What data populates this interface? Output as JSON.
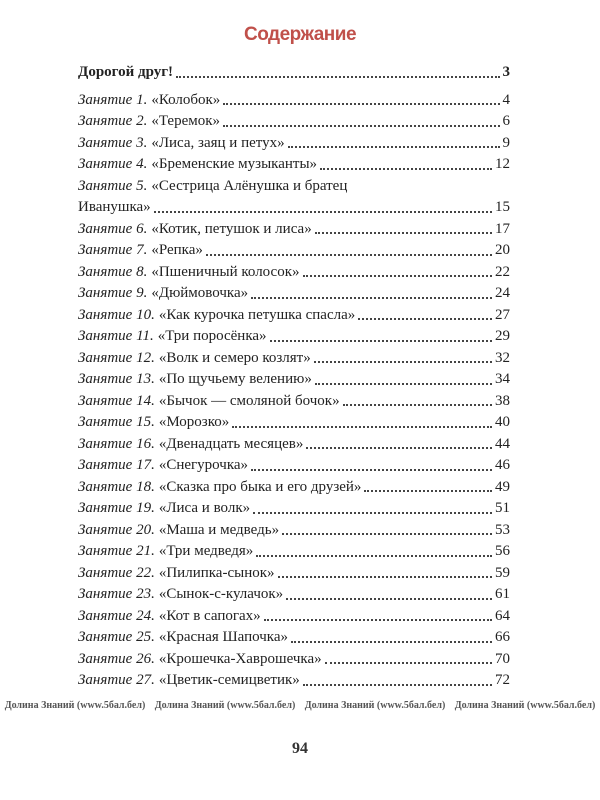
{
  "title": "Содержание",
  "intro": {
    "text": "Дорогой друг!",
    "page": "3"
  },
  "lesson_prefix": "Занятие",
  "entries": [
    {
      "label": "Занятие 1.",
      "title": "«Колобок»",
      "page": "4"
    },
    {
      "label": "Занятие 2.",
      "title": "«Теремок»",
      "page": "6"
    },
    {
      "label": "Занятие 3.",
      "title": "«Лиса, заяц и петух»",
      "page": "9"
    },
    {
      "label": "Занятие 4.",
      "title": "«Бременские музыканты»",
      "page": "12"
    },
    {
      "label": "Занятие 5.",
      "title": "«Сестрица Алёнушка и братец",
      "title_cont": "Иванушка»",
      "page": "15"
    },
    {
      "label": "Занятие 6.",
      "title": "«Котик, петушок и лиса»",
      "page": "17"
    },
    {
      "label": "Занятие 7.",
      "title": "«Репка»",
      "page": "20"
    },
    {
      "label": "Занятие 8.",
      "title": "«Пшеничный колосок»",
      "page": "22"
    },
    {
      "label": "Занятие 9.",
      "title": "«Дюймовочка»",
      "page": "24"
    },
    {
      "label": "Занятие 10.",
      "title": "«Как курочка петушка спасла»",
      "page": "27"
    },
    {
      "label": "Занятие 11.",
      "title": "«Три поросёнка»",
      "page": "29"
    },
    {
      "label": "Занятие 12.",
      "title": "«Волк и семеро козлят»",
      "page": "32"
    },
    {
      "label": "Занятие 13.",
      "title": "«По щучьему велению»",
      "page": "34"
    },
    {
      "label": "Занятие 14.",
      "title": "«Бычок — смоляной бочок»",
      "page": "38"
    },
    {
      "label": "Занятие 15.",
      "title": "«Морозко»",
      "page": "40"
    },
    {
      "label": "Занятие 16.",
      "title": "«Двенадцать месяцев»",
      "page": "44"
    },
    {
      "label": "Занятие 17.",
      "title": "«Снегурочка»",
      "page": "46"
    },
    {
      "label": "Занятие 18.",
      "title": "«Сказка про быка и его друзей»",
      "page": "49"
    },
    {
      "label": "Занятие 19.",
      "title": "«Лиса и волк»",
      "page": "51"
    },
    {
      "label": "Занятие 20.",
      "title": "«Маша и медведь»",
      "page": "53"
    },
    {
      "label": "Занятие 21.",
      "title": "«Три медведя»",
      "page": "56"
    },
    {
      "label": "Занятие 22.",
      "title": "«Пилипка-сынок»",
      "page": "59"
    },
    {
      "label": "Занятие 23.",
      "title": "«Сынок-с-кулачок»",
      "page": "61"
    },
    {
      "label": "Занятие 24.",
      "title": "«Кот в сапогах»",
      "page": "64"
    },
    {
      "label": "Занятие 25.",
      "title": "«Красная Шапочка»",
      "page": "66"
    },
    {
      "label": "Занятие 26.",
      "title": "«Крошечка-Хаврошечка»",
      "page": "70"
    },
    {
      "label": "Занятие 27.",
      "title": "«Цветик-семицветик»",
      "page": "72"
    }
  ],
  "page_number": "94",
  "watermark": "Долина Знаний (www.5бал.бел)",
  "colors": {
    "title": "#c0504a",
    "text": "#222222"
  }
}
